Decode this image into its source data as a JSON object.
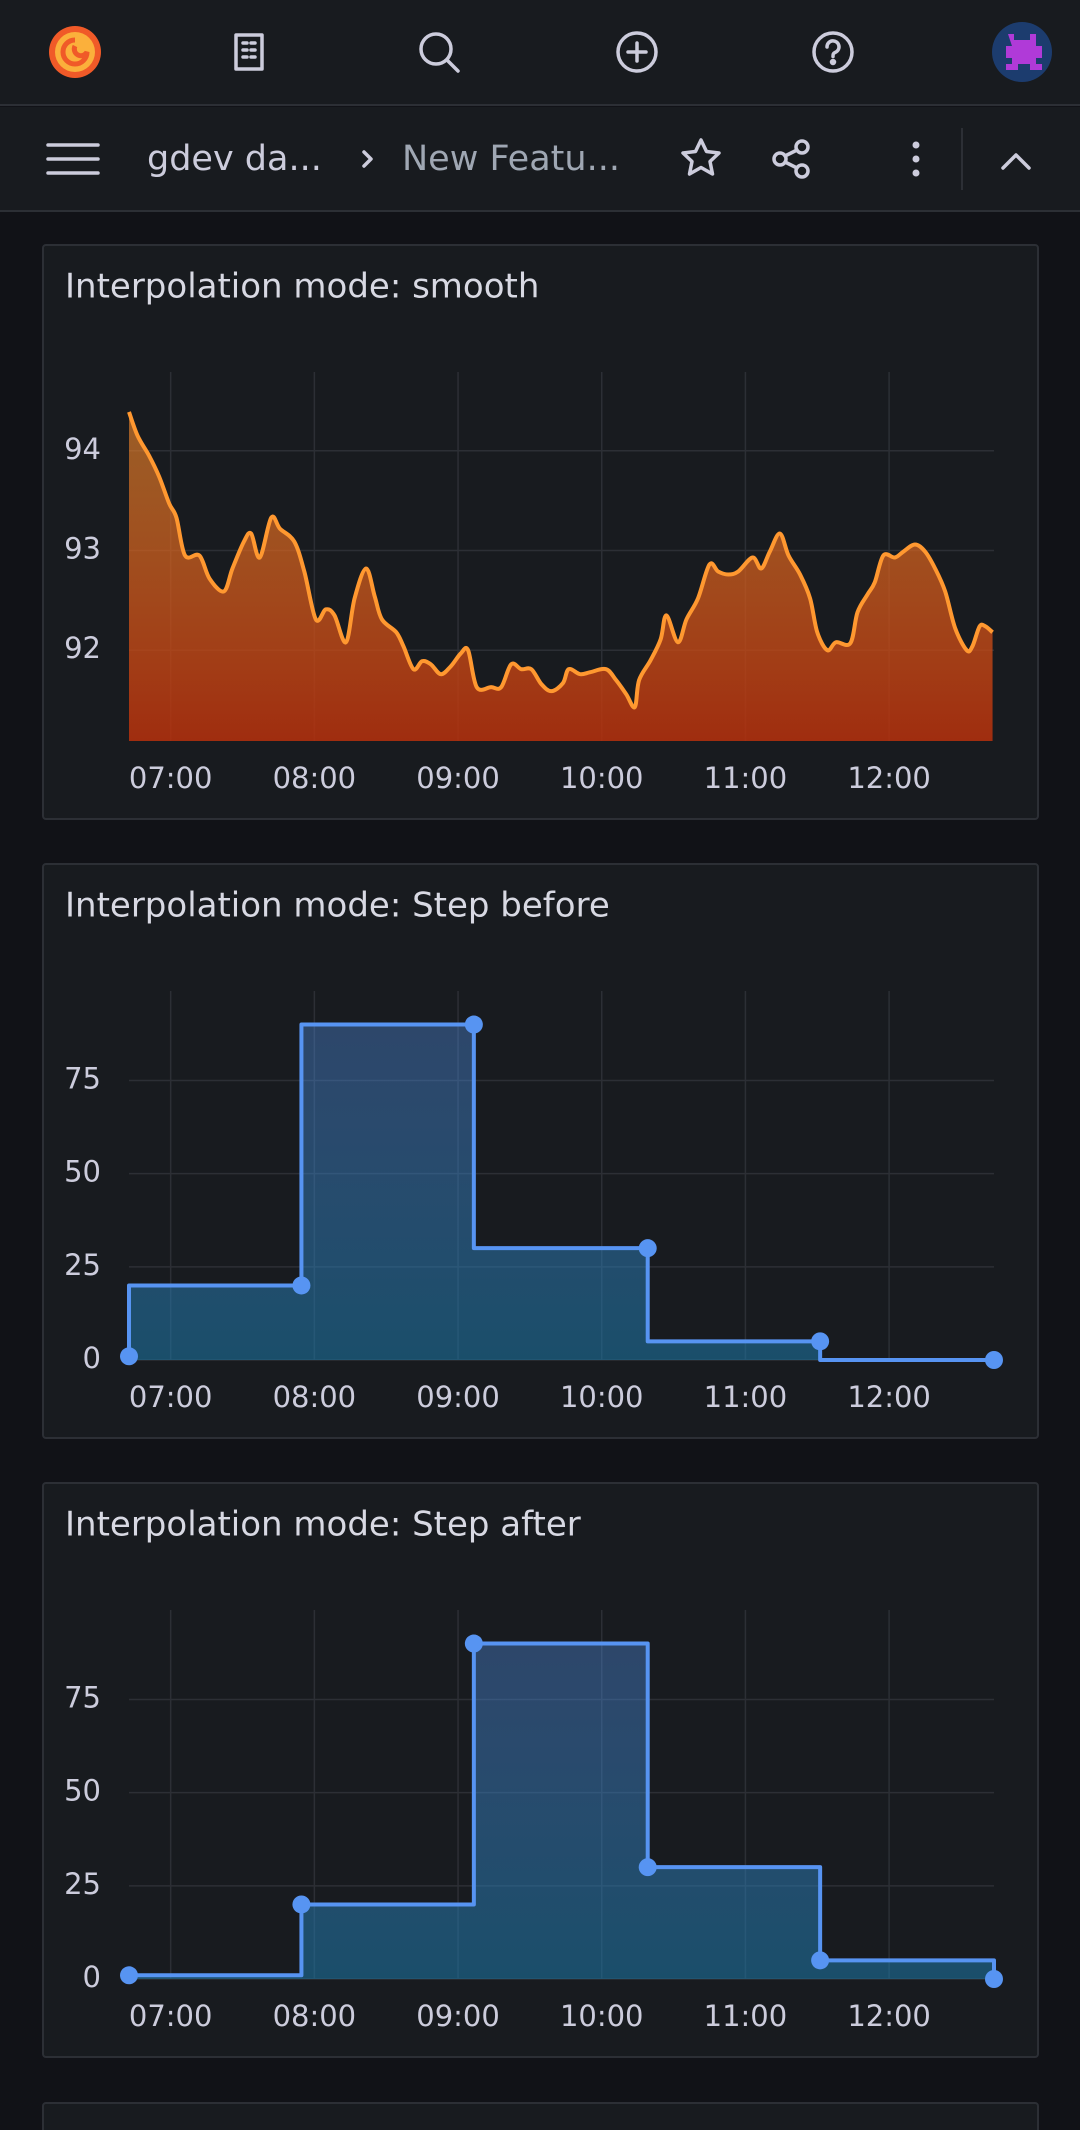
{
  "nav": {
    "breadcrumb": [
      "gdev da...",
      "New Featu..."
    ]
  },
  "chart_data": [
    {
      "type": "line",
      "title": "Interpolation mode: smooth",
      "interpolation": "smooth",
      "fill": "gradient",
      "points": false,
      "xlim": [
        6.71,
        12.73
      ],
      "xticks": [
        {
          "value": 7,
          "label": "07:00"
        },
        {
          "value": 8,
          "label": "08:00"
        },
        {
          "value": 9,
          "label": "09:00"
        },
        {
          "value": 10,
          "label": "10:00"
        },
        {
          "value": 11,
          "label": "11:00"
        },
        {
          "value": 12,
          "label": "12:00"
        }
      ],
      "ylim": [
        91.09,
        94.79
      ],
      "yticks": [
        92,
        93,
        94
      ],
      "grid": true,
      "series": [
        {
          "color": "#ff9830",
          "x": [
            6.71,
            6.77,
            6.85,
            6.92,
            6.99,
            7.04,
            7.1,
            7.2,
            7.27,
            7.37,
            7.43,
            7.51,
            7.56,
            7.62,
            7.7,
            7.76,
            7.86,
            7.93,
            8.01,
            8.08,
            8.14,
            8.22,
            8.28,
            8.36,
            8.42,
            8.47,
            8.57,
            8.62,
            8.69,
            8.75,
            8.81,
            8.88,
            8.95,
            9.02,
            9.07,
            9.13,
            9.23,
            9.3,
            9.37,
            9.44,
            9.51,
            9.58,
            9.65,
            9.73,
            9.77,
            9.85,
            9.92,
            10.03,
            10.1,
            10.17,
            10.23,
            10.26,
            10.34,
            10.41,
            10.45,
            10.53,
            10.59,
            10.67,
            10.75,
            10.81,
            10.88,
            10.95,
            11.05,
            11.11,
            11.17,
            11.24,
            11.3,
            11.38,
            11.45,
            11.5,
            11.57,
            11.63,
            11.73,
            11.78,
            11.85,
            11.9,
            11.96,
            12.04,
            12.1,
            12.18,
            12.25,
            12.32,
            12.39,
            12.46,
            12.54,
            12.58,
            12.63,
            12.67,
            12.72
          ],
          "values": [
            94.39,
            94.15,
            93.95,
            93.74,
            93.47,
            93.33,
            92.95,
            92.95,
            92.72,
            92.59,
            92.82,
            93.09,
            93.17,
            92.93,
            93.33,
            93.22,
            93.09,
            92.79,
            92.31,
            92.41,
            92.35,
            92.08,
            92.52,
            92.82,
            92.54,
            92.31,
            92.18,
            92.04,
            91.81,
            91.89,
            91.86,
            91.76,
            91.84,
            91.97,
            92.0,
            91.63,
            91.63,
            91.63,
            91.86,
            91.81,
            91.81,
            91.66,
            91.59,
            91.67,
            91.81,
            91.76,
            91.78,
            91.81,
            91.7,
            91.56,
            91.43,
            91.7,
            91.9,
            92.11,
            92.35,
            92.08,
            92.31,
            92.52,
            92.86,
            92.79,
            92.76,
            92.79,
            92.93,
            92.82,
            92.99,
            93.17,
            92.95,
            92.76,
            92.52,
            92.18,
            92.0,
            92.08,
            92.07,
            92.38,
            92.56,
            92.68,
            92.95,
            92.93,
            92.99,
            93.06,
            92.99,
            92.82,
            92.59,
            92.22,
            92.0,
            92.04,
            92.24,
            92.24,
            92.18
          ]
        }
      ]
    },
    {
      "type": "line",
      "title": "Interpolation mode: Step before",
      "interpolation": "stepBefore",
      "fill": "gradient",
      "points": true,
      "xlim": [
        6.71,
        12.73
      ],
      "xticks": [
        {
          "value": 7,
          "label": "07:00"
        },
        {
          "value": 8,
          "label": "08:00"
        },
        {
          "value": 9,
          "label": "09:00"
        },
        {
          "value": 10,
          "label": "10:00"
        },
        {
          "value": 11,
          "label": "11:00"
        },
        {
          "value": 12,
          "label": "12:00"
        }
      ],
      "ylim": [
        0,
        99
      ],
      "yticks": [
        0,
        25,
        50,
        75
      ],
      "grid": true,
      "series": [
        {
          "color": "#5794f2",
          "x": [
            6.71,
            7.91,
            9.11,
            10.32,
            11.52,
            12.73
          ],
          "values": [
            1,
            20,
            90,
            30,
            5,
            0
          ]
        }
      ]
    },
    {
      "type": "line",
      "title": "Interpolation mode: Step after",
      "interpolation": "stepAfter",
      "fill": "gradient",
      "points": true,
      "xlim": [
        6.71,
        12.73
      ],
      "xticks": [
        {
          "value": 7,
          "label": "07:00"
        },
        {
          "value": 8,
          "label": "08:00"
        },
        {
          "value": 9,
          "label": "09:00"
        },
        {
          "value": 10,
          "label": "10:00"
        },
        {
          "value": 11,
          "label": "11:00"
        },
        {
          "value": 12,
          "label": "12:00"
        }
      ],
      "ylim": [
        0,
        99
      ],
      "yticks": [
        0,
        25,
        50,
        75
      ],
      "grid": true,
      "series": [
        {
          "color": "#5794f2",
          "x": [
            6.71,
            7.91,
            9.11,
            10.32,
            11.52,
            12.73
          ],
          "values": [
            1,
            20,
            90,
            30,
            5,
            0
          ]
        }
      ]
    }
  ]
}
